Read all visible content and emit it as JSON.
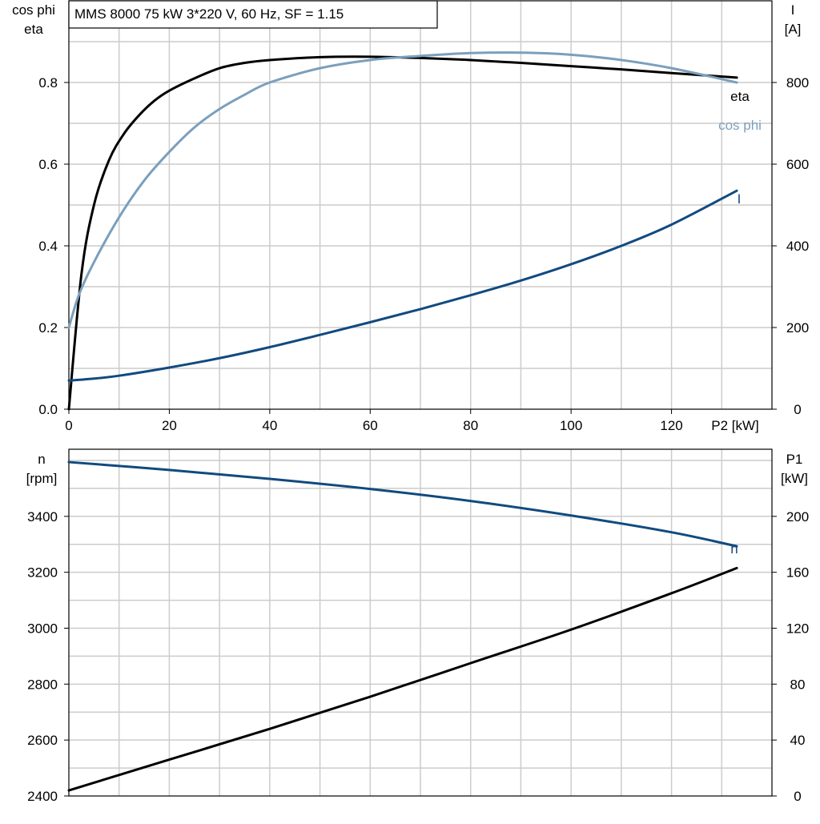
{
  "title": "MMS 8000   75 kW   3*220 V, 60 Hz, SF = 1.15",
  "colors": {
    "eta": "#000000",
    "cos_phi": "#7b9fbd",
    "current": "#114a7f",
    "speed": "#114a7f",
    "p1": "#000000",
    "grid": "#cccccc"
  },
  "chart_data": [
    {
      "type": "line",
      "title": "MMS 8000   75 kW   3*220 V, 60 Hz, SF = 1.15",
      "xlabel": "P2 [kW]",
      "xlim": [
        0,
        140
      ],
      "xticks": [
        0,
        20,
        40,
        60,
        80,
        100,
        120
      ],
      "y_left": {
        "label_line1": "cos phi",
        "label_line2": "eta",
        "lim": [
          0,
          1.0
        ],
        "ticks": [
          "0.0",
          "0.2",
          "0.4",
          "0.6",
          "0.8"
        ],
        "tick_values": [
          0,
          0.2,
          0.4,
          0.6,
          0.8
        ]
      },
      "y_right": {
        "label_line1": "I",
        "label_line2": "[A]",
        "lim": [
          0,
          1000
        ],
        "ticks": [
          "0",
          "200",
          "400",
          "600",
          "800"
        ],
        "tick_values": [
          0,
          200,
          400,
          600,
          800
        ]
      },
      "grid": true,
      "series": [
        {
          "name": "eta",
          "axis": "left",
          "color": "#000000",
          "x": [
            0,
            2.5,
            5,
            8,
            11,
            14,
            17,
            20,
            25,
            30,
            35,
            40,
            50,
            60,
            70,
            80,
            90,
            100,
            110,
            120,
            133
          ],
          "y": [
            0,
            0.33,
            0.5,
            0.61,
            0.675,
            0.72,
            0.755,
            0.78,
            0.81,
            0.835,
            0.848,
            0.855,
            0.862,
            0.863,
            0.86,
            0.855,
            0.848,
            0.84,
            0.832,
            0.823,
            0.812
          ]
        },
        {
          "name": "cos phi",
          "axis": "left",
          "color": "#7b9fbd",
          "x": [
            0,
            2,
            5,
            10,
            15,
            20,
            25,
            30,
            35,
            40,
            50,
            60,
            70,
            80,
            90,
            100,
            110,
            120,
            133
          ],
          "y": [
            0.2,
            0.28,
            0.36,
            0.47,
            0.56,
            0.63,
            0.69,
            0.735,
            0.77,
            0.8,
            0.835,
            0.855,
            0.865,
            0.872,
            0.873,
            0.868,
            0.855,
            0.835,
            0.8
          ]
        },
        {
          "name": "I",
          "axis": "right",
          "color": "#114a7f",
          "x": [
            0,
            5,
            10,
            20,
            30,
            40,
            50,
            60,
            70,
            80,
            90,
            100,
            110,
            120,
            133
          ],
          "y": [
            70,
            75,
            82,
            102,
            125,
            152,
            182,
            213,
            245,
            279,
            315,
            355,
            400,
            452,
            535
          ]
        }
      ],
      "annotations": [
        "eta",
        "cos phi",
        "I"
      ]
    },
    {
      "type": "line",
      "xlim": [
        0,
        140
      ],
      "y_left": {
        "label_line1": "n",
        "label_line2": "[rpm]",
        "lim": [
          2400,
          3640
        ],
        "ticks": [
          "2400",
          "2600",
          "2800",
          "3000",
          "3200",
          "3400"
        ],
        "tick_values": [
          2400,
          2600,
          2800,
          3000,
          3200,
          3400
        ]
      },
      "y_right": {
        "label_line1": "P1",
        "label_line2": "[kW]",
        "lim": [
          0,
          248
        ],
        "ticks": [
          "0",
          "40",
          "80",
          "120",
          "160",
          "200"
        ],
        "tick_values": [
          0,
          40,
          80,
          120,
          160,
          200
        ]
      },
      "grid": true,
      "series": [
        {
          "name": "n",
          "axis": "left",
          "color": "#114a7f",
          "x": [
            0,
            20,
            40,
            60,
            80,
            100,
            120,
            133
          ],
          "y": [
            3594,
            3566,
            3534,
            3498,
            3455,
            3403,
            3343,
            3293
          ]
        },
        {
          "name": "P1",
          "axis": "right",
          "color": "#000000",
          "x": [
            0,
            20,
            40,
            60,
            80,
            100,
            120,
            133
          ],
          "y": [
            4,
            26,
            48,
            71,
            95,
            119,
            145,
            163
          ]
        }
      ],
      "annotations": [
        "n"
      ]
    }
  ]
}
